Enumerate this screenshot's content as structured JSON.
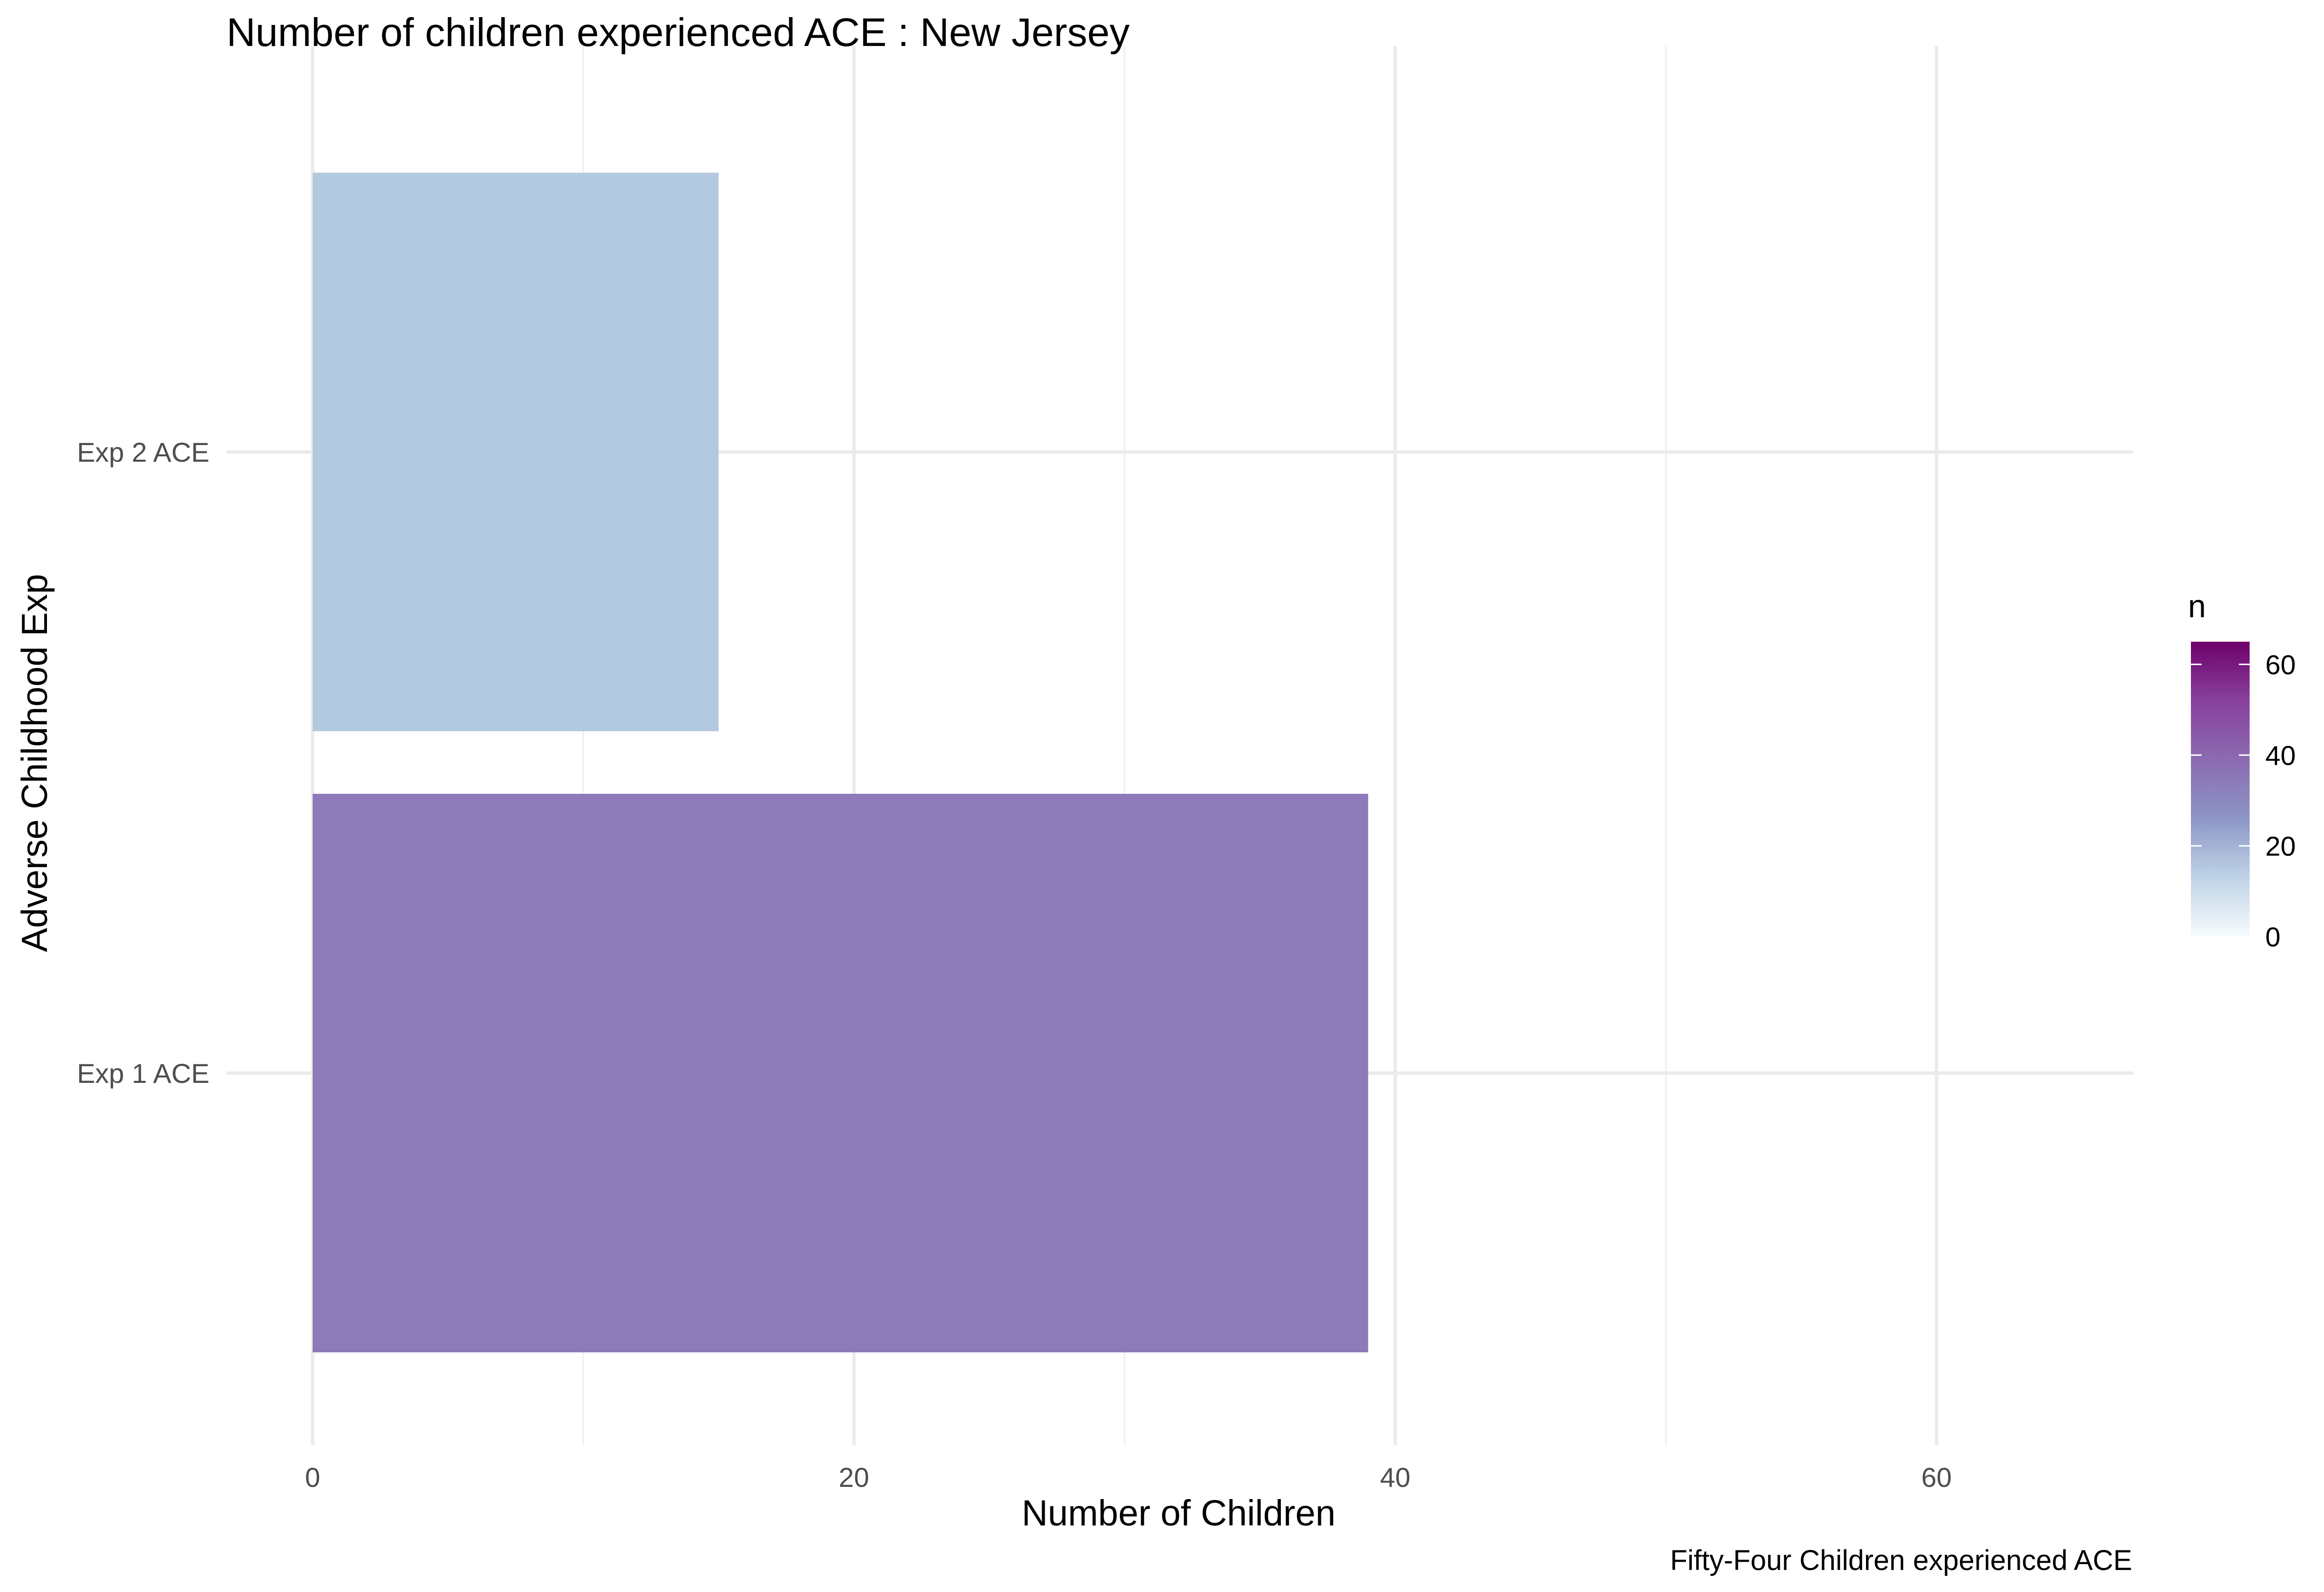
{
  "chart_data": {
    "type": "bar",
    "orientation": "horizontal",
    "title": "Number of children experienced ACE : New Jersey",
    "xlabel": "Number of Children",
    "ylabel": "Adverse Childhood Exp",
    "caption": "Fifty-Four Children experienced ACE",
    "categories": [
      "Exp 1 ACE",
      "Exp 2 ACE"
    ],
    "values": [
      39,
      15
    ],
    "xlim": [
      0,
      67
    ],
    "x_ticks": [
      0,
      20,
      40,
      60
    ],
    "x_tick_labels": [
      "0",
      "20",
      "40",
      "60"
    ],
    "grid": true,
    "legend": {
      "title": "n",
      "type": "colorbar",
      "placement": "right",
      "range": [
        0,
        65
      ],
      "ticks": [
        0,
        20,
        40,
        60
      ],
      "tick_labels": [
        "0",
        "20",
        "40",
        "60"
      ],
      "colors": [
        "#F7FCFD",
        "#BFD3E6",
        "#8C96C6",
        "#8C6BB1",
        "#88419D",
        "#6E016B"
      ]
    },
    "bar_colors": [
      "#8C7BB8",
      "#B3C9E0"
    ]
  }
}
